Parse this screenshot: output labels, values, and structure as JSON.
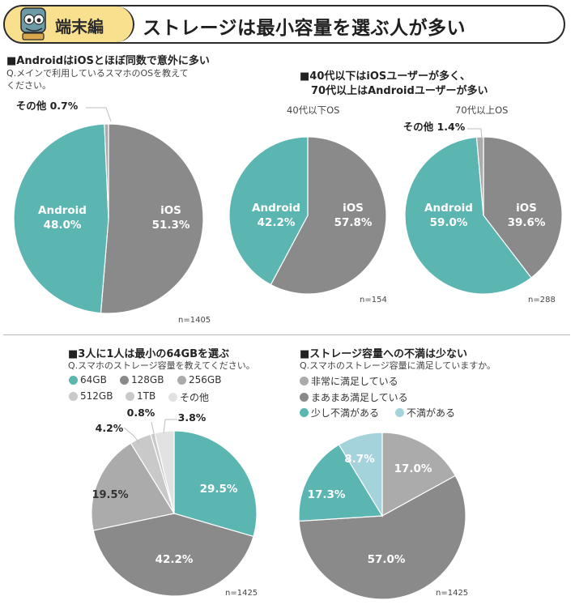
{
  "header": {
    "tag": "端末編",
    "title": "ストレージは最小容量を選ぶ人が多い"
  },
  "sections": {
    "os_share": {
      "title": "■AndroidはiOSとほぼ同数で意外に多い",
      "question_line1": "Q.メインで利用しているスマホのOSを教えて",
      "question_line2": "ください。"
    },
    "os_by_age": {
      "title_line1": "■40代以下はiOSユーザーが多く、",
      "title_line2": "70代以上はAndroidユーザーが多い",
      "sub_left": "40代以下OS",
      "sub_right": "70代以上OS"
    },
    "storage": {
      "title": "■3人に1人は最小の64GBを選ぶ",
      "question": "Q.スマホのストレージ容量を教えてください。"
    },
    "satisfaction": {
      "title": "■ストレージ容量への不満は少ない",
      "question": "Q.スマホのストレージ容量に満足していますか。"
    }
  },
  "colors": {
    "teal": "#5bb5b0",
    "gray": "#8a8a8a",
    "light_gray": "#ababab",
    "lighter_gray": "#c9c9c9",
    "pale_gray": "#e2e2e2",
    "light_blue": "#a5d3dc",
    "line": "#bdbdbd"
  },
  "chart_data": [
    {
      "id": "os_all",
      "type": "pie",
      "n_label": "n=1405",
      "slices": [
        {
          "label": "iOS",
          "value": 51.3,
          "value_label": "51.3%",
          "color": "gray"
        },
        {
          "label": "Android",
          "value": 48.0,
          "value_label": "48.0%",
          "color": "teal"
        },
        {
          "label": "その他",
          "value": 0.7,
          "value_label": "その他 0.7%",
          "color": "light_gray"
        }
      ]
    },
    {
      "id": "os_40s",
      "type": "pie",
      "n_label": "n=154",
      "slices": [
        {
          "label": "iOS",
          "value": 57.8,
          "value_label": "57.8%",
          "color": "gray"
        },
        {
          "label": "Android",
          "value": 42.2,
          "value_label": "42.2%",
          "color": "teal"
        }
      ]
    },
    {
      "id": "os_70s",
      "type": "pie",
      "n_label": "n=288",
      "slices": [
        {
          "label": "iOS",
          "value": 39.6,
          "value_label": "39.6%",
          "color": "gray"
        },
        {
          "label": "Android",
          "value": 59.0,
          "value_label": "59.0%",
          "color": "teal"
        },
        {
          "label": "その他",
          "value": 1.4,
          "value_label": "その他 1.4%",
          "color": "light_gray"
        }
      ]
    },
    {
      "id": "storage",
      "type": "pie",
      "n_label": "n=1425",
      "legend": [
        "64GB",
        "128GB",
        "256GB",
        "512GB",
        "1TB",
        "その他"
      ],
      "slices": [
        {
          "label": "64GB",
          "value": 29.5,
          "value_label": "29.5%",
          "color": "teal"
        },
        {
          "label": "128GB",
          "value": 42.2,
          "value_label": "42.2%",
          "color": "gray"
        },
        {
          "label": "256GB",
          "value": 19.5,
          "value_label": "19.5%",
          "color": "light_gray"
        },
        {
          "label": "512GB",
          "value": 4.2,
          "value_label": "4.2%",
          "color": "lighter_gray"
        },
        {
          "label": "1TB",
          "value": 0.8,
          "value_label": "0.8%",
          "color": "lighter_gray"
        },
        {
          "label": "その他",
          "value": 3.8,
          "value_label": "3.8%",
          "color": "pale_gray"
        }
      ]
    },
    {
      "id": "satisfaction",
      "type": "pie",
      "n_label": "n=1425",
      "legend": [
        "非常に満足している",
        "まあまあ満足している",
        "少し不満がある",
        "不満がある"
      ],
      "slices": [
        {
          "label": "非常に満足している",
          "value": 17.0,
          "value_label": "17.0%",
          "color": "light_gray"
        },
        {
          "label": "まあまあ満足している",
          "value": 57.0,
          "value_label": "57.0%",
          "color": "gray"
        },
        {
          "label": "少し不満がある",
          "value": 17.3,
          "value_label": "17.3%",
          "color": "teal"
        },
        {
          "label": "不満がある",
          "value": 8.7,
          "value_label": "8.7%",
          "color": "light_blue"
        }
      ]
    }
  ]
}
